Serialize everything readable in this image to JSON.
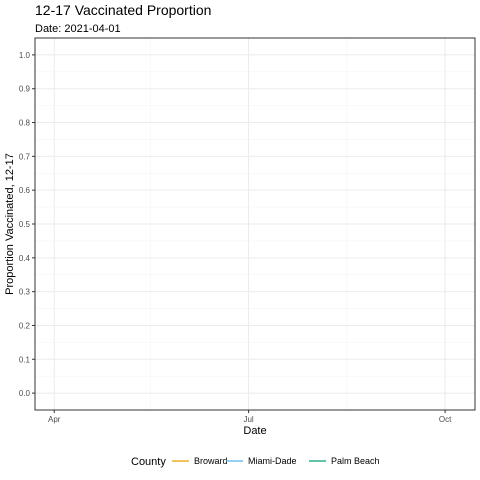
{
  "chart_data": {
    "type": "line",
    "title": "12-17 Vaccinated Proportion",
    "subtitle": "Date: 2021-04-01",
    "xlabel": "Date",
    "ylabel": "Proportion Vaccinated, 12-17",
    "xlim": [
      "2021-03-23",
      "2021-10-15"
    ],
    "ylim": [
      -0.05,
      1.05
    ],
    "x_ticks": [
      {
        "date": "2021-04-01",
        "label": "Apr"
      },
      {
        "date": "2021-07-01",
        "label": "Jul"
      },
      {
        "date": "2021-10-01",
        "label": "Oct"
      }
    ],
    "x_minor_ticks": [
      "2021-05-16",
      "2021-08-16"
    ],
    "y_ticks": [
      0.0,
      0.1,
      0.2,
      0.3,
      0.4,
      0.5,
      0.6,
      0.7,
      0.8,
      0.9,
      1.0
    ],
    "y_tick_labels": [
      "0.0",
      "0.1",
      "0.2",
      "0.3",
      "0.4",
      "0.5",
      "0.6",
      "0.7",
      "0.8",
      "0.9",
      "1.0"
    ],
    "grid": true,
    "legend": {
      "title": "County",
      "placement": "bottom"
    },
    "series": [
      {
        "name": "Broward",
        "color": "#E69F00",
        "x": [],
        "y": []
      },
      {
        "name": "Miami-Dade",
        "color": "#56B4E9",
        "x": [],
        "y": []
      },
      {
        "name": "Palm Beach",
        "color": "#009E73",
        "x": [],
        "y": []
      }
    ]
  }
}
